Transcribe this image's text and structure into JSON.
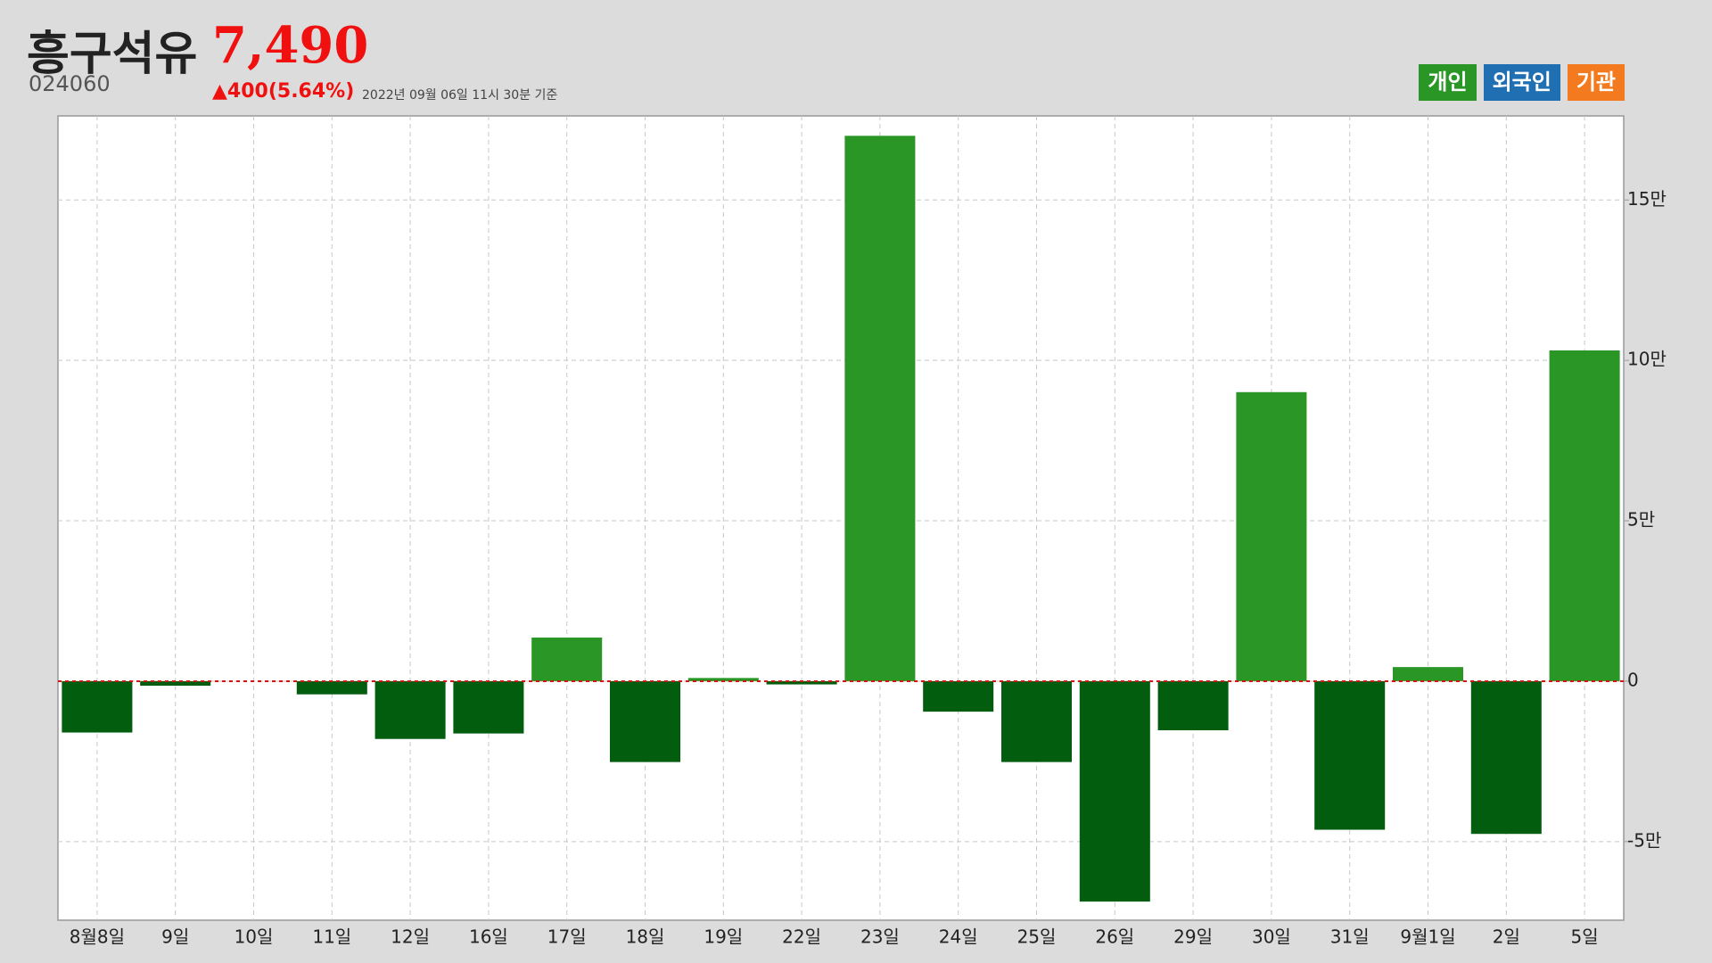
{
  "header": {
    "title": "흥구석유",
    "price": "7,490",
    "code": "024060",
    "change": "▲400(5.64%)",
    "timestamp": "2022년 09월 06일 11시 30분 기준"
  },
  "legend": [
    {
      "label": "개인",
      "color": "#2a9626"
    },
    {
      "label": "외국인",
      "color": "#1f6fb2"
    },
    {
      "label": "기관",
      "color": "#f47a1f"
    }
  ],
  "chart_data": {
    "type": "bar",
    "categories": [
      "8월8일",
      "9일",
      "10일",
      "11일",
      "12일",
      "16일",
      "17일",
      "18일",
      "19일",
      "22일",
      "23일",
      "24일",
      "25일",
      "26일",
      "29일",
      "30일",
      "31일",
      "9월1일",
      "2일",
      "5일"
    ],
    "values": [
      -16000,
      -1400,
      0,
      -4100,
      -18000,
      -16300,
      13600,
      -25200,
      1000,
      -1000,
      170000,
      -9500,
      -25200,
      -68700,
      -15300,
      90100,
      -46300,
      4400,
      -47600,
      103100
    ],
    "color": "#2a9626",
    "negative_color": "#025e0e",
    "ylim": [
      -74500,
      176200
    ],
    "yticks": [
      {
        "value": -50000,
        "label": "-5만"
      },
      0,
      {
        "value": 50000,
        "label": "5만"
      },
      {
        "value": 100000,
        "label": "10만"
      },
      {
        "value": 150000,
        "label": "15만"
      }
    ],
    "grid": true
  }
}
